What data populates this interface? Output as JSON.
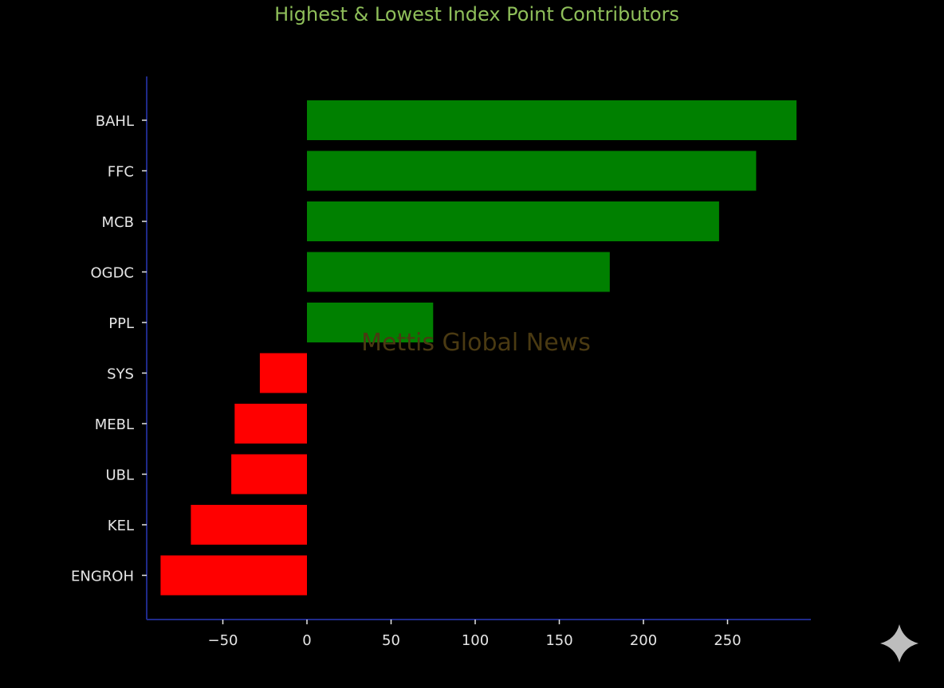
{
  "colors": {
    "background": "#000000",
    "title": "#8fbf5a",
    "axis": "#1f2a8a",
    "tick_text": "#e6e6e6",
    "positive_bar": "#008000",
    "negative_bar": "#ff0000",
    "watermark": "#4a3a12",
    "sparkle": "#bdbdbd"
  },
  "watermark": "Mettis Global News",
  "corner_icon": "sparkle-icon",
  "chart_data": {
    "type": "bar",
    "orientation": "horizontal",
    "title": "Highest & Lowest Index Point Contributors",
    "xlabel": "",
    "ylabel": "",
    "categories": [
      "BAHL",
      "FFC",
      "MCB",
      "OGDC",
      "PPL",
      "SYS",
      "MEBL",
      "UBL",
      "KEL",
      "ENGROH"
    ],
    "values": [
      291,
      267,
      245,
      180,
      75,
      -28,
      -43,
      -45,
      -69,
      -87
    ],
    "xlim": [
      -95,
      300
    ],
    "xticks": [
      -50,
      0,
      50,
      100,
      150,
      200,
      250
    ],
    "xtick_labels": [
      "−50",
      "0",
      "50",
      "100",
      "150",
      "200",
      "250"
    ],
    "grid": false,
    "legend": "none"
  }
}
